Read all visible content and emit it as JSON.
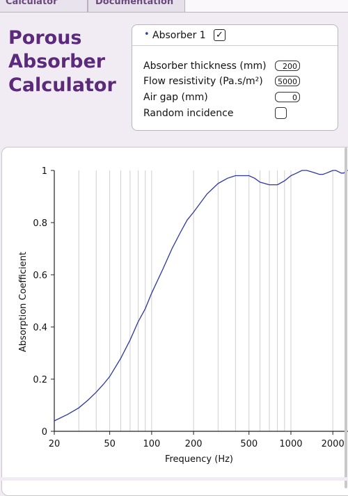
{
  "tabs": [
    {
      "label": "Calculator"
    },
    {
      "label": "Documentation"
    }
  ],
  "app": {
    "title_lines": [
      "Porous",
      "Absorber",
      "Calculator"
    ]
  },
  "panel": {
    "absorber_label": "Absorber 1",
    "absorber_checked": true,
    "thickness_label": "Absorber thickness (mm)",
    "thickness_value": "200",
    "flow_label": "Flow resistivity (Pa.s/m²)",
    "flow_value": "5000",
    "airgap_label": "Air gap (mm)",
    "airgap_value": "0",
    "random_label": "Random incidence",
    "random_checked": false
  },
  "colors": {
    "accent": "#5b2a7a",
    "curve": "#2c35a8"
  },
  "chart_data": {
    "type": "line",
    "title": "",
    "xlabel": "Frequency (Hz)",
    "ylabel": "Absorption Coefficient",
    "xscale": "log",
    "xlim": [
      20,
      2600
    ],
    "ylim": [
      0,
      1
    ],
    "xticks": [
      20,
      50,
      100,
      200,
      500,
      1000,
      2000
    ],
    "yticks": [
      0,
      0.2,
      0.4,
      0.6,
      0.8,
      1
    ],
    "grid": "vertical",
    "series": [
      {
        "x": [
          20,
          25,
          30,
          35,
          40,
          45,
          50,
          60,
          70,
          80,
          90,
          100,
          120,
          140,
          160,
          180,
          200,
          250,
          300,
          350,
          400,
          450,
          500,
          550,
          600,
          650,
          700,
          750,
          800,
          900,
          1000,
          1100,
          1200,
          1300,
          1400,
          1500,
          1600,
          1700,
          1800,
          1900,
          2000,
          2100,
          2200,
          2300,
          2400,
          2500,
          2600
        ],
        "y": [
          0.04,
          0.065,
          0.09,
          0.12,
          0.15,
          0.18,
          0.21,
          0.28,
          0.35,
          0.42,
          0.47,
          0.53,
          0.62,
          0.7,
          0.76,
          0.81,
          0.84,
          0.91,
          0.95,
          0.97,
          0.98,
          0.98,
          0.98,
          0.97,
          0.955,
          0.95,
          0.945,
          0.945,
          0.945,
          0.96,
          0.98,
          0.99,
          1.0,
          1.0,
          0.995,
          0.99,
          0.985,
          0.985,
          0.99,
          0.995,
          1.0,
          1.0,
          0.995,
          0.99,
          0.99,
          1.0,
          1.0
        ]
      }
    ]
  }
}
